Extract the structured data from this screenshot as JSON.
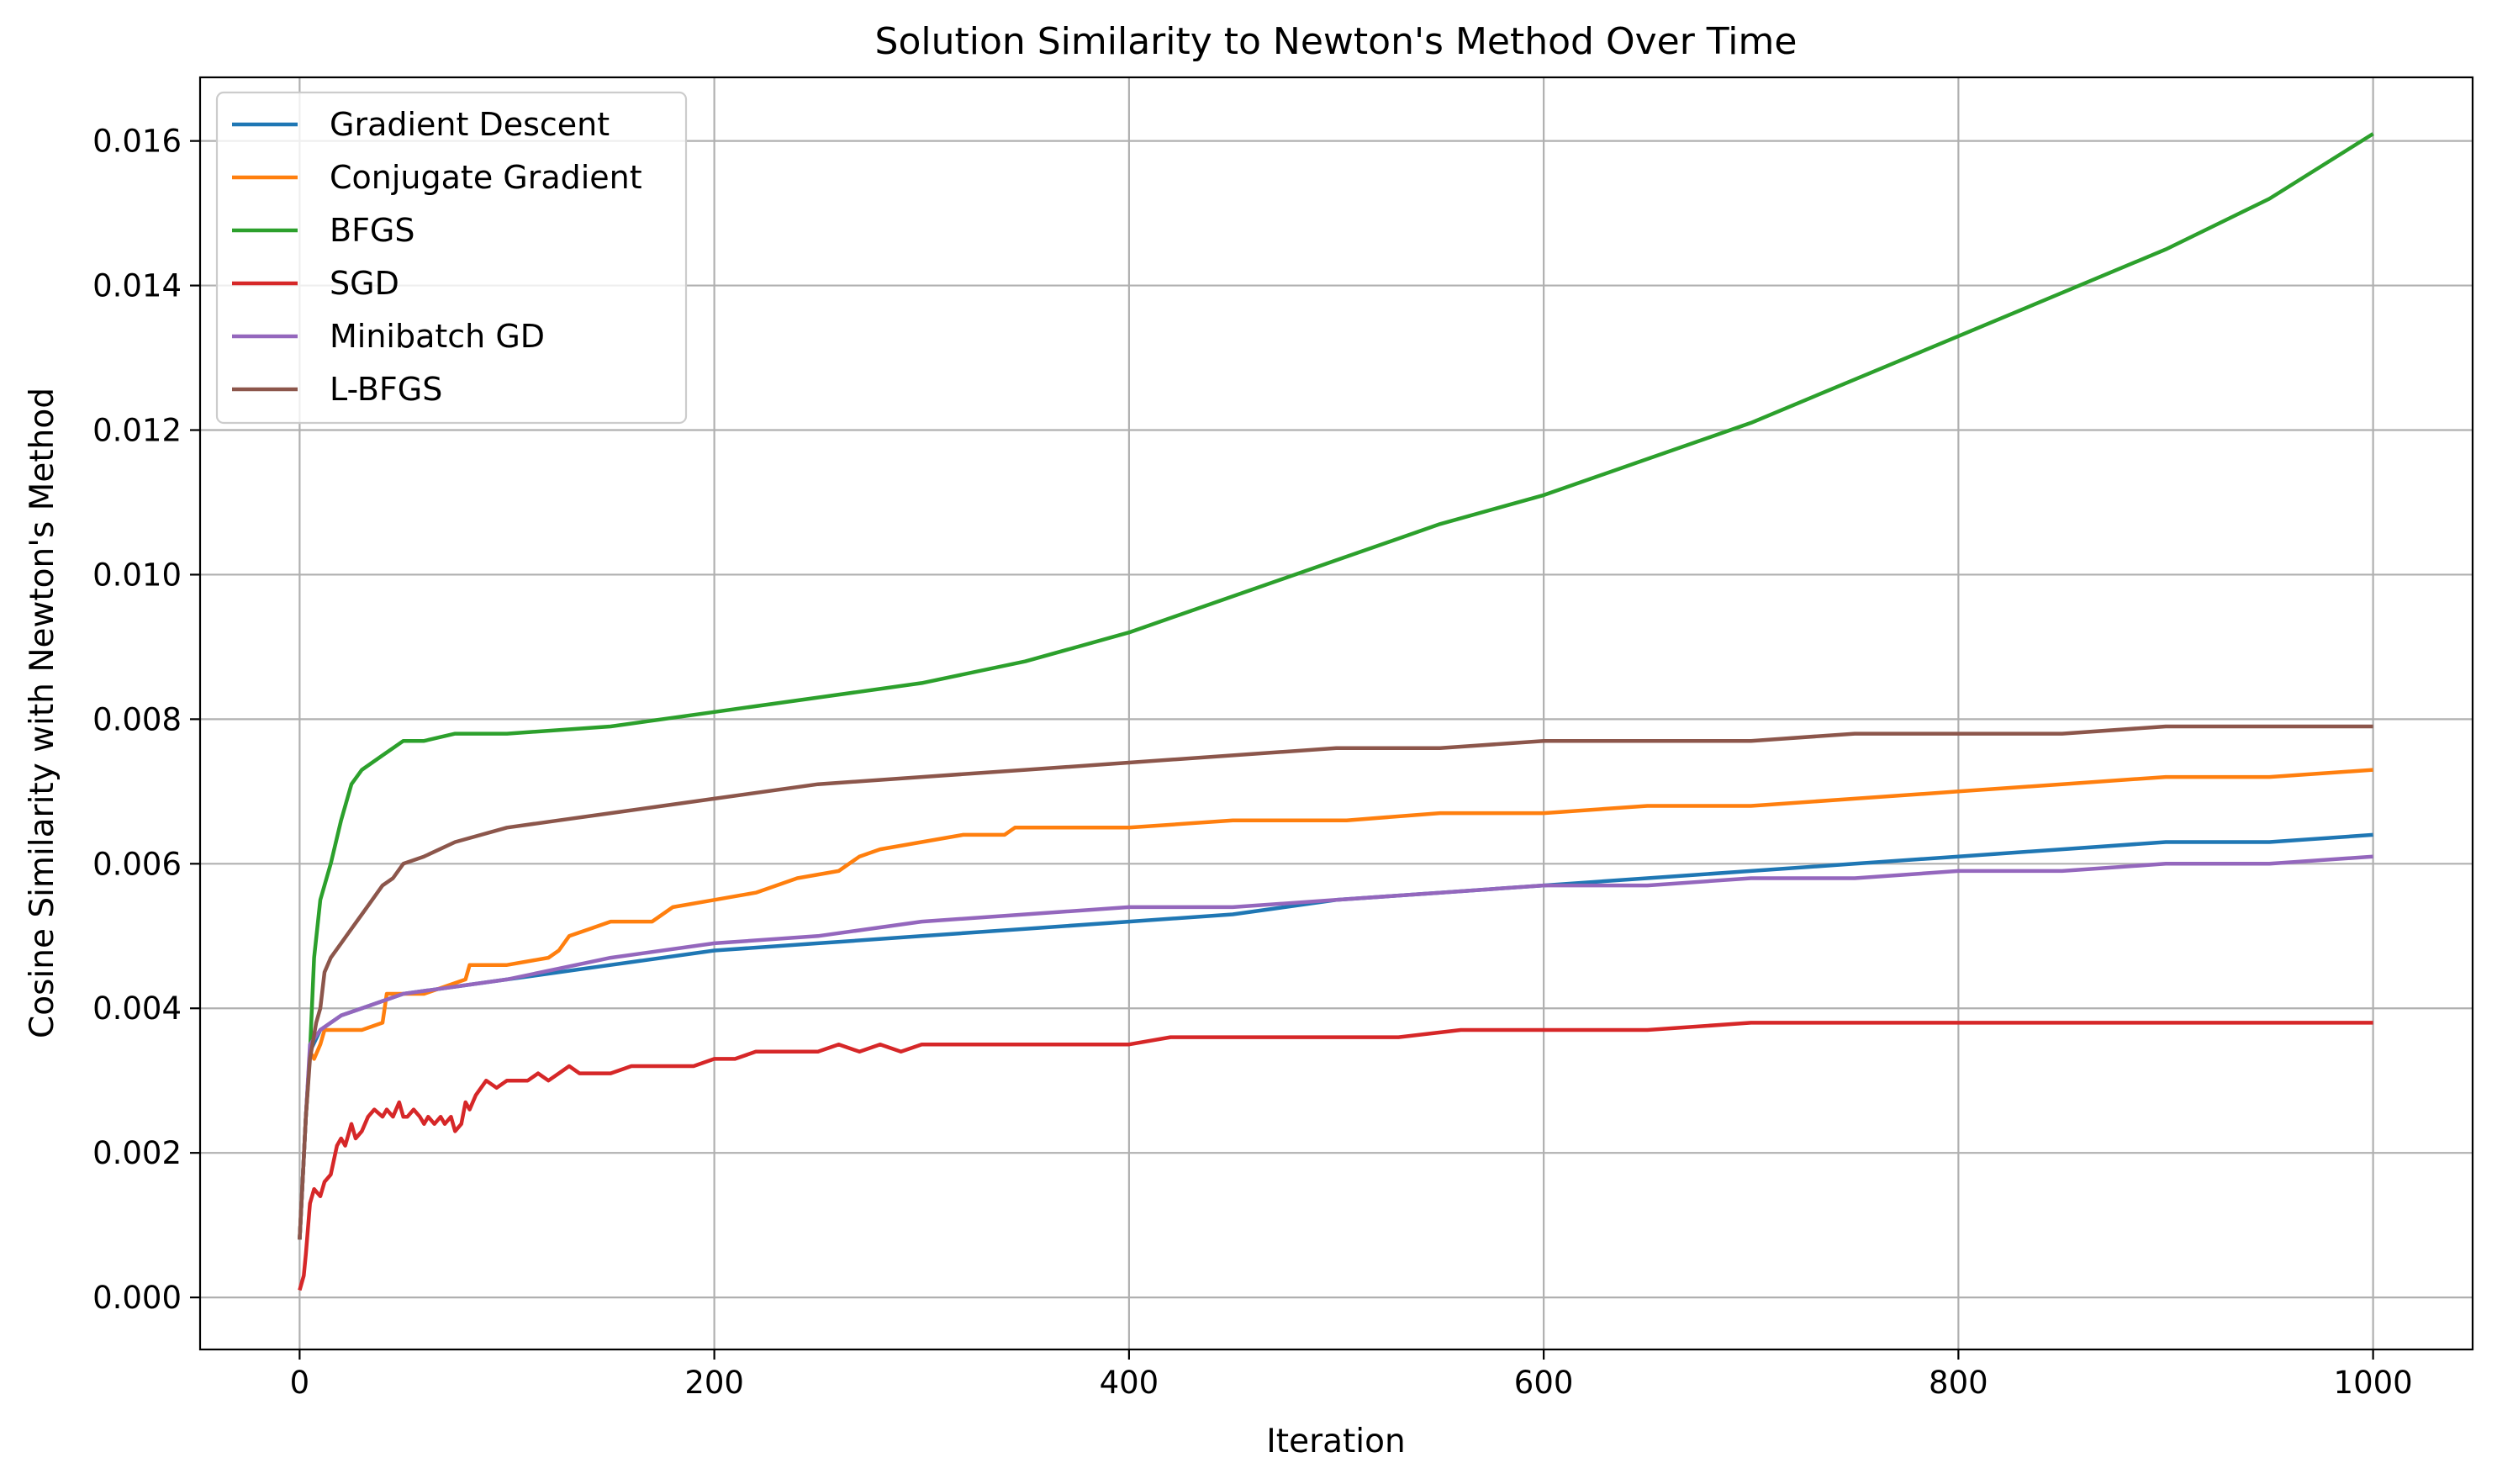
{
  "chart_data": {
    "type": "line",
    "title": "Solution Similarity to Newton's Method Over Time",
    "xlabel": "Iteration",
    "ylabel": "Cosine Similarity with Newton's Method",
    "xlim": [
      -48,
      1048
    ],
    "ylim": [
      -0.00072,
      0.01688
    ],
    "xticks": [
      0,
      200,
      400,
      600,
      800,
      1000
    ],
    "xtick_labels": [
      "0",
      "200",
      "400",
      "600",
      "800",
      "1000"
    ],
    "yticks": [
      0.0,
      0.002,
      0.004,
      0.006,
      0.008,
      0.01,
      0.012,
      0.014,
      0.016
    ],
    "ytick_labels": [
      "0.000",
      "0.002",
      "0.004",
      "0.006",
      "0.008",
      "0.010",
      "0.012",
      "0.014",
      "0.016"
    ],
    "grid": true,
    "legend_position": "top-left",
    "series": [
      {
        "name": "Gradient Descent",
        "color": "#1f77b4",
        "x": [
          0,
          3,
          5,
          10,
          20,
          30,
          40,
          50,
          75,
          100,
          150,
          200,
          250,
          300,
          350,
          400,
          450,
          500,
          550,
          600,
          650,
          700,
          750,
          800,
          850,
          900,
          950,
          1000
        ],
        "y": [
          0.0008,
          0.0025,
          0.0034,
          0.0037,
          0.0039,
          0.004,
          0.0041,
          0.0042,
          0.0043,
          0.0044,
          0.0046,
          0.0048,
          0.0049,
          0.005,
          0.0051,
          0.0052,
          0.0053,
          0.0055,
          0.0056,
          0.0057,
          0.0058,
          0.0059,
          0.006,
          0.0061,
          0.0062,
          0.0063,
          0.0063,
          0.0064
        ]
      },
      {
        "name": "Conjugate Gradient",
        "color": "#ff7f0e",
        "x": [
          0,
          3,
          5,
          7,
          10,
          12,
          14,
          20,
          30,
          40,
          42,
          44,
          60,
          80,
          82,
          100,
          120,
          125,
          130,
          140,
          150,
          170,
          180,
          200,
          220,
          240,
          260,
          270,
          280,
          300,
          320,
          340,
          345,
          350,
          400,
          450,
          500,
          505,
          550,
          600,
          650,
          700,
          750,
          800,
          850,
          900,
          950,
          1000
        ],
        "y": [
          0.0008,
          0.0025,
          0.0034,
          0.0033,
          0.0035,
          0.0037,
          0.0037,
          0.0037,
          0.0037,
          0.0038,
          0.0042,
          0.0042,
          0.0042,
          0.0044,
          0.0046,
          0.0046,
          0.0047,
          0.0048,
          0.005,
          0.0051,
          0.0052,
          0.0052,
          0.0054,
          0.0055,
          0.0056,
          0.0058,
          0.0059,
          0.0061,
          0.0062,
          0.0063,
          0.0064,
          0.0064,
          0.0065,
          0.0065,
          0.0065,
          0.0066,
          0.0066,
          0.0066,
          0.0067,
          0.0067,
          0.0068,
          0.0068,
          0.0069,
          0.007,
          0.0071,
          0.0072,
          0.0072,
          0.0073
        ]
      },
      {
        "name": "BFGS",
        "color": "#2ca02c",
        "x": [
          0,
          3,
          5,
          7,
          10,
          15,
          20,
          25,
          30,
          35,
          40,
          50,
          60,
          75,
          100,
          150,
          200,
          250,
          300,
          350,
          400,
          450,
          500,
          550,
          600,
          650,
          700,
          750,
          800,
          850,
          900,
          950,
          1000
        ],
        "y": [
          0.0008,
          0.0025,
          0.0034,
          0.0047,
          0.0055,
          0.006,
          0.0066,
          0.0071,
          0.0073,
          0.0074,
          0.0075,
          0.0077,
          0.0077,
          0.0078,
          0.0078,
          0.0079,
          0.0081,
          0.0083,
          0.0085,
          0.0088,
          0.0092,
          0.0097,
          0.0102,
          0.0107,
          0.0111,
          0.0116,
          0.0121,
          0.0127,
          0.0133,
          0.0139,
          0.0145,
          0.0152,
          0.0161
        ]
      },
      {
        "name": "SGD",
        "color": "#d62728",
        "x": [
          0,
          2,
          3,
          5,
          7,
          10,
          12,
          15,
          18,
          20,
          22,
          25,
          27,
          30,
          33,
          36,
          40,
          42,
          45,
          48,
          50,
          52,
          55,
          58,
          60,
          62,
          65,
          68,
          70,
          73,
          75,
          78,
          80,
          82,
          85,
          90,
          95,
          100,
          105,
          110,
          115,
          120,
          125,
          130,
          135,
          140,
          150,
          160,
          170,
          180,
          190,
          200,
          210,
          220,
          230,
          240,
          250,
          260,
          270,
          280,
          290,
          300,
          320,
          340,
          360,
          380,
          400,
          420,
          440,
          460,
          480,
          500,
          530,
          560,
          580,
          600,
          650,
          700,
          750,
          800,
          850,
          900,
          950,
          1000
        ],
        "y": [
          0.0001,
          0.0003,
          0.0006,
          0.0013,
          0.0015,
          0.0014,
          0.0016,
          0.0017,
          0.0021,
          0.0022,
          0.0021,
          0.0024,
          0.0022,
          0.0023,
          0.0025,
          0.0026,
          0.0025,
          0.0026,
          0.0025,
          0.0027,
          0.0025,
          0.0025,
          0.0026,
          0.0025,
          0.0024,
          0.0025,
          0.0024,
          0.0025,
          0.0024,
          0.0025,
          0.0023,
          0.0024,
          0.0027,
          0.0026,
          0.0028,
          0.003,
          0.0029,
          0.003,
          0.003,
          0.003,
          0.0031,
          0.003,
          0.0031,
          0.0032,
          0.0031,
          0.0031,
          0.0031,
          0.0032,
          0.0032,
          0.0032,
          0.0032,
          0.0033,
          0.0033,
          0.0034,
          0.0034,
          0.0034,
          0.0034,
          0.0035,
          0.0034,
          0.0035,
          0.0034,
          0.0035,
          0.0035,
          0.0035,
          0.0035,
          0.0035,
          0.0035,
          0.0036,
          0.0036,
          0.0036,
          0.0036,
          0.0036,
          0.0036,
          0.0037,
          0.0037,
          0.0037,
          0.0037,
          0.0038,
          0.0038,
          0.0038,
          0.0038,
          0.0038,
          0.0038,
          0.0038
        ]
      },
      {
        "name": "Minibatch GD",
        "color": "#9467bd",
        "x": [
          0,
          3,
          5,
          10,
          20,
          30,
          40,
          50,
          75,
          100,
          150,
          200,
          250,
          300,
          350,
          400,
          450,
          500,
          550,
          600,
          650,
          700,
          750,
          800,
          850,
          900,
          950,
          1000
        ],
        "y": [
          0.0008,
          0.0025,
          0.0035,
          0.0037,
          0.0039,
          0.004,
          0.0041,
          0.0042,
          0.0043,
          0.0044,
          0.0047,
          0.0049,
          0.005,
          0.0052,
          0.0053,
          0.0054,
          0.0054,
          0.0055,
          0.0056,
          0.0057,
          0.0057,
          0.0058,
          0.0058,
          0.0059,
          0.0059,
          0.006,
          0.006,
          0.0061
        ]
      },
      {
        "name": "L-BFGS",
        "color": "#8c564b",
        "x": [
          0,
          3,
          5,
          8,
          10,
          12,
          15,
          20,
          25,
          30,
          35,
          40,
          45,
          50,
          60,
          75,
          100,
          125,
          150,
          175,
          200,
          250,
          300,
          350,
          400,
          450,
          500,
          550,
          600,
          650,
          700,
          750,
          800,
          850,
          900,
          950,
          1000
        ],
        "y": [
          0.0008,
          0.0025,
          0.0033,
          0.0038,
          0.004,
          0.0045,
          0.0047,
          0.0049,
          0.0051,
          0.0053,
          0.0055,
          0.0057,
          0.0058,
          0.006,
          0.0061,
          0.0063,
          0.0065,
          0.0066,
          0.0067,
          0.0068,
          0.0069,
          0.0071,
          0.0072,
          0.0073,
          0.0074,
          0.0075,
          0.0076,
          0.0076,
          0.0077,
          0.0077,
          0.0077,
          0.0078,
          0.0078,
          0.0078,
          0.0079,
          0.0079,
          0.0079
        ]
      }
    ]
  }
}
